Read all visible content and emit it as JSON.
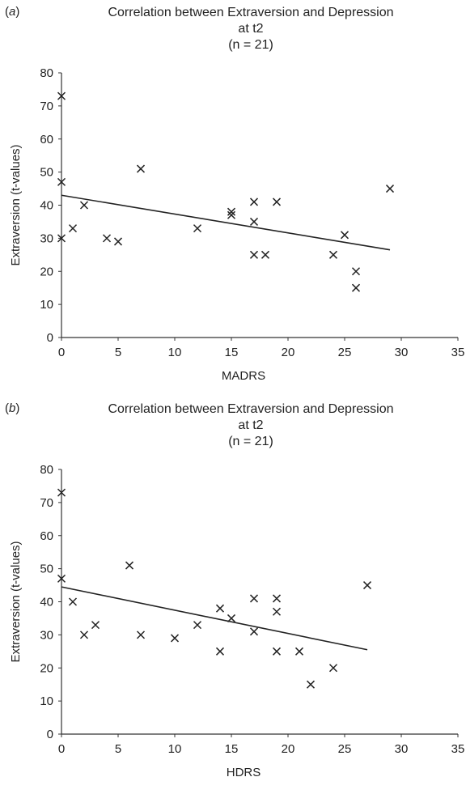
{
  "chart_data": [
    {
      "type": "scatter",
      "panel_label": "a",
      "title": "Correlation between Extraversion and Depression",
      "title_line2": "at t2",
      "subtitle": "(n = 21)",
      "xlabel": "MADRS",
      "ylabel": "Extraversion (t-values)",
      "xlim": [
        0,
        35
      ],
      "ylim": [
        0,
        80
      ],
      "xticks": [
        0,
        5,
        10,
        15,
        20,
        25,
        30,
        35
      ],
      "yticks": [
        0,
        10,
        20,
        30,
        40,
        50,
        60,
        70,
        80
      ],
      "marker": "x",
      "grid": false,
      "points": [
        {
          "x": 0,
          "y": 73
        },
        {
          "x": 0,
          "y": 47
        },
        {
          "x": 0,
          "y": 30
        },
        {
          "x": 1,
          "y": 33
        },
        {
          "x": 2,
          "y": 40
        },
        {
          "x": 4,
          "y": 30
        },
        {
          "x": 5,
          "y": 29
        },
        {
          "x": 7,
          "y": 51
        },
        {
          "x": 12,
          "y": 33
        },
        {
          "x": 15,
          "y": 38
        },
        {
          "x": 15,
          "y": 37
        },
        {
          "x": 17,
          "y": 41
        },
        {
          "x": 17,
          "y": 35
        },
        {
          "x": 17,
          "y": 25
        },
        {
          "x": 18,
          "y": 25
        },
        {
          "x": 19,
          "y": 41
        },
        {
          "x": 24,
          "y": 25
        },
        {
          "x": 25,
          "y": 31
        },
        {
          "x": 26,
          "y": 20
        },
        {
          "x": 26,
          "y": 15
        },
        {
          "x": 29,
          "y": 45
        }
      ],
      "trendline": {
        "x": [
          0,
          29
        ],
        "y": [
          43,
          26.5
        ]
      }
    },
    {
      "type": "scatter",
      "panel_label": "b",
      "title": "Correlation between Extraversion and Depression",
      "title_line2": "at t2",
      "subtitle": "(n = 21)",
      "xlabel": "HDRS",
      "ylabel": "Extraversion (t-values)",
      "xlim": [
        0,
        35
      ],
      "ylim": [
        0,
        80
      ],
      "xticks": [
        0,
        5,
        10,
        15,
        20,
        25,
        30,
        35
      ],
      "yticks": [
        0,
        10,
        20,
        30,
        40,
        50,
        60,
        70,
        80
      ],
      "marker": "x",
      "grid": false,
      "points": [
        {
          "x": 0,
          "y": 73
        },
        {
          "x": 0,
          "y": 47
        },
        {
          "x": 1,
          "y": 40
        },
        {
          "x": 2,
          "y": 30
        },
        {
          "x": 3,
          "y": 33
        },
        {
          "x": 6,
          "y": 51
        },
        {
          "x": 7,
          "y": 30
        },
        {
          "x": 10,
          "y": 29
        },
        {
          "x": 12,
          "y": 33
        },
        {
          "x": 14,
          "y": 38
        },
        {
          "x": 14,
          "y": 25
        },
        {
          "x": 15,
          "y": 35
        },
        {
          "x": 17,
          "y": 41
        },
        {
          "x": 17,
          "y": 31
        },
        {
          "x": 19,
          "y": 41
        },
        {
          "x": 19,
          "y": 37
        },
        {
          "x": 19,
          "y": 25
        },
        {
          "x": 21,
          "y": 25
        },
        {
          "x": 22,
          "y": 15
        },
        {
          "x": 24,
          "y": 20
        },
        {
          "x": 27,
          "y": 45
        }
      ],
      "trendline": {
        "x": [
          0,
          27
        ],
        "y": [
          44.5,
          25.5
        ]
      }
    }
  ]
}
